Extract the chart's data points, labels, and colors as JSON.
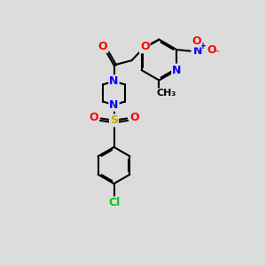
{
  "bg_color": "#dcdcdc",
  "bond_color": "#000000",
  "bond_width": 1.5,
  "atom_colors": {
    "N": "#0000ff",
    "O": "#ff0000",
    "S": "#ccaa00",
    "Cl": "#00cc00",
    "C": "#000000"
  },
  "font_size": 9.0,
  "fig_w": 3.0,
  "fig_h": 3.0,
  "dpi": 100
}
